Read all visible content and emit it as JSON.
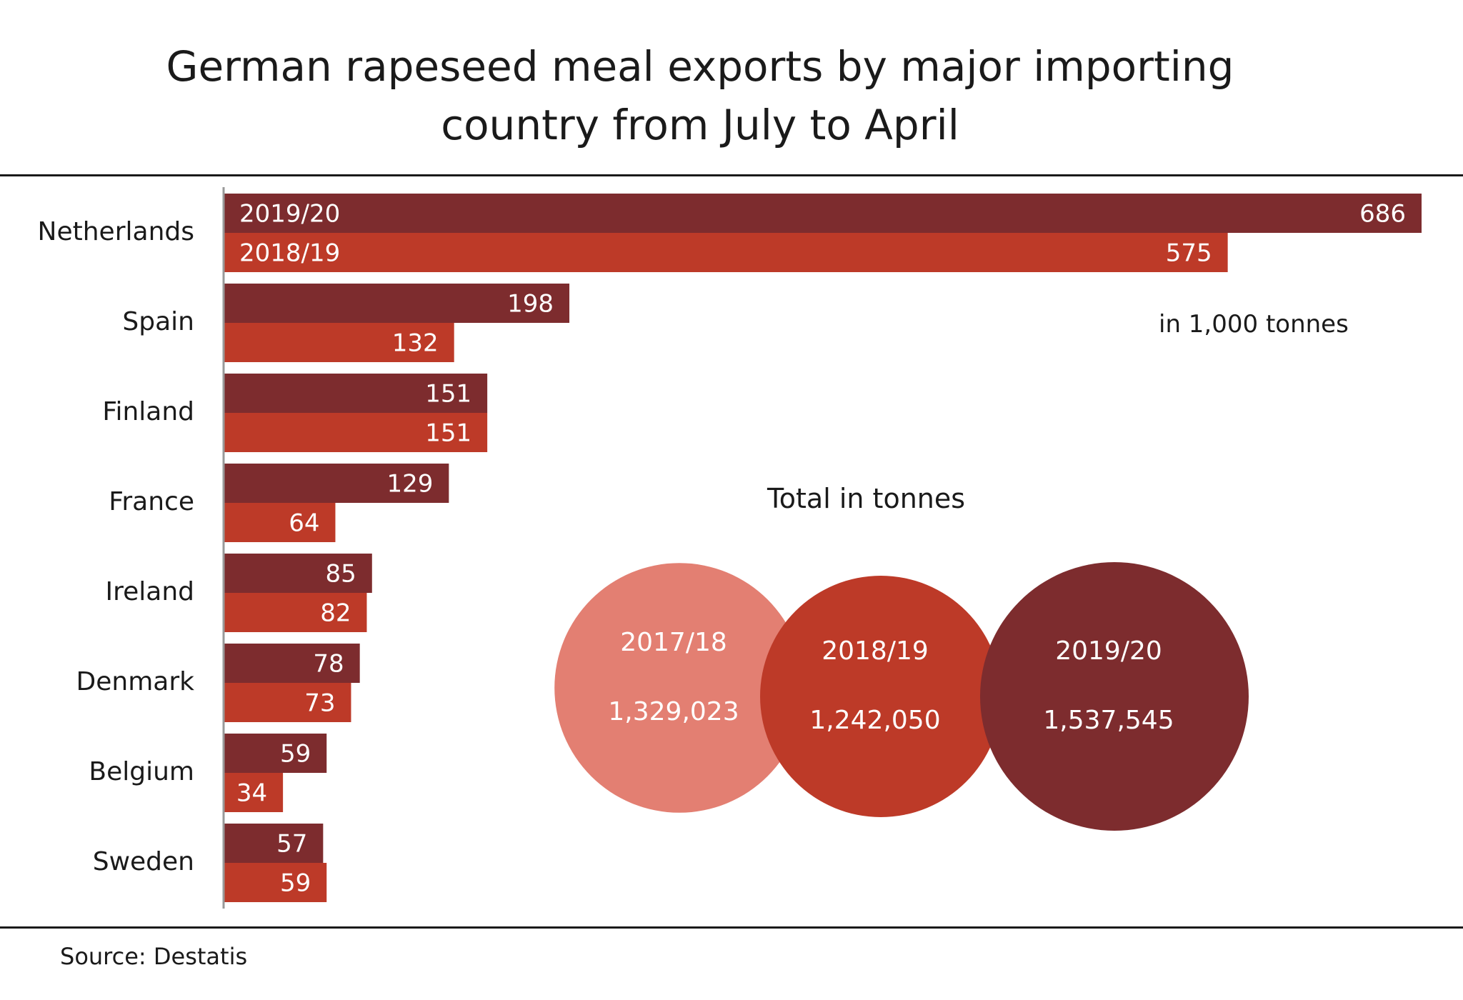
{
  "title_line1": "German rapeseed meal exports by major importing",
  "title_line2": "country  from July to April",
  "unit_note": "in 1,000  tonnes",
  "totals_title": "Total in tonnes",
  "source": "Source: Destatis",
  "colors": {
    "series_2019_20": "#7d2c2e",
    "series_2018_19": "#bd3a28",
    "circle_2017_18": "#e37f72",
    "circle_2018_19": "#bd3a28",
    "circle_2019_20": "#7d2c2e",
    "axis": "#999999",
    "bar_text": "#ffffff"
  },
  "chart_data": [
    {
      "type": "bar",
      "orientation": "horizontal",
      "unit": "1,000 tonnes",
      "categories": [
        "Netherlands",
        "Spain",
        "Finland",
        "France",
        "Ireland",
        "Denmark",
        "Belgium",
        "Sweden"
      ],
      "series": [
        {
          "name": "2019/20",
          "values": [
            686,
            198,
            151,
            129,
            85,
            78,
            59,
            57
          ]
        },
        {
          "name": "2018/19",
          "values": [
            575,
            132,
            151,
            64,
            82,
            73,
            34,
            59
          ]
        }
      ],
      "xlim": [
        0,
        686
      ],
      "value_labels": [
        "686",
        "198",
        "151",
        "129",
        "85",
        "78",
        "59",
        "57"
      ],
      "value_labels_2018": [
        "575",
        "132",
        "151",
        "64",
        "82",
        "73",
        "34",
        "59"
      ]
    },
    {
      "type": "bubble",
      "title": "Total in tonnes",
      "items": [
        {
          "label": "2017/18",
          "value": 1329023,
          "display": "1,329,023"
        },
        {
          "label": "2018/19",
          "value": 1242050,
          "display": "1,242,050"
        },
        {
          "label": "2019/20",
          "value": 1537545,
          "display": "1,537,545"
        }
      ]
    }
  ]
}
